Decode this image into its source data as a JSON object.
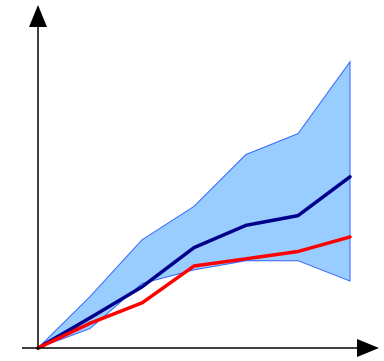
{
  "chart_data": {
    "type": "line",
    "title": "",
    "xlabel": "",
    "ylabel": "",
    "grid": false,
    "legend": "none",
    "x": [
      0,
      1,
      2,
      3,
      4,
      5,
      6
    ],
    "series": [
      {
        "role": "mean",
        "values": [
          0,
          0.62,
          1.26,
          2.07,
          2.53,
          2.73,
          3.53
        ],
        "color": "#00008b"
      },
      {
        "role": "median",
        "values": [
          0,
          0.51,
          0.93,
          1.69,
          1.84,
          1.99,
          2.29
        ],
        "color": "#ff0000"
      }
    ],
    "band": {
      "upper": [
        0,
        1.06,
        2.23,
        2.92,
        3.99,
        4.42,
        5.9
      ],
      "lower": [
        0,
        0.4,
        1.33,
        1.61,
        1.8,
        1.8,
        1.38
      ],
      "color": "#99ccff",
      "edge_color": "#3366ff"
    },
    "xlim": [
      0,
      6.0
    ],
    "ylim": [
      0,
      6.0
    ]
  }
}
